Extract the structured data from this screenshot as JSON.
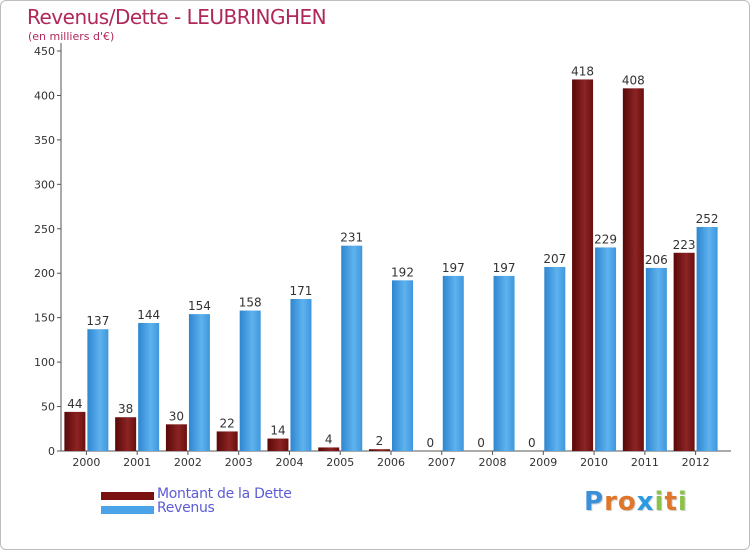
{
  "title": "Revenus/Dette - LEUBRINGHEN",
  "subtitle": "(en milliers d'€)",
  "chart_data": {
    "type": "bar",
    "categories": [
      "2000",
      "2001",
      "2002",
      "2003",
      "2004",
      "2005",
      "2006",
      "2007",
      "2008",
      "2009",
      "2010",
      "2011",
      "2012"
    ],
    "series": [
      {
        "name": "Montant de la Dette",
        "color": "#7a1010",
        "values": [
          44,
          38,
          30,
          22,
          14,
          4,
          2,
          0,
          0,
          0,
          418,
          408,
          223
        ]
      },
      {
        "name": "Revenus",
        "color": "#4aa3e6",
        "values": [
          137,
          144,
          154,
          158,
          171,
          231,
          192,
          197,
          197,
          207,
          229,
          206,
          252
        ]
      }
    ],
    "ylim": [
      0,
      450
    ],
    "yticks": [
      0,
      50,
      100,
      150,
      200,
      250,
      300,
      350,
      400,
      450
    ],
    "grid": false,
    "legend_position": "bottom-left"
  },
  "logo": {
    "letters": [
      "P",
      "r",
      "o",
      "x",
      "i",
      "t",
      "i"
    ],
    "colors": [
      "#3c8fd9",
      "#e0762a",
      "#e0762a",
      "#2a9be0",
      "#8bc34a",
      "#e0762a",
      "#8bc34a"
    ]
  }
}
